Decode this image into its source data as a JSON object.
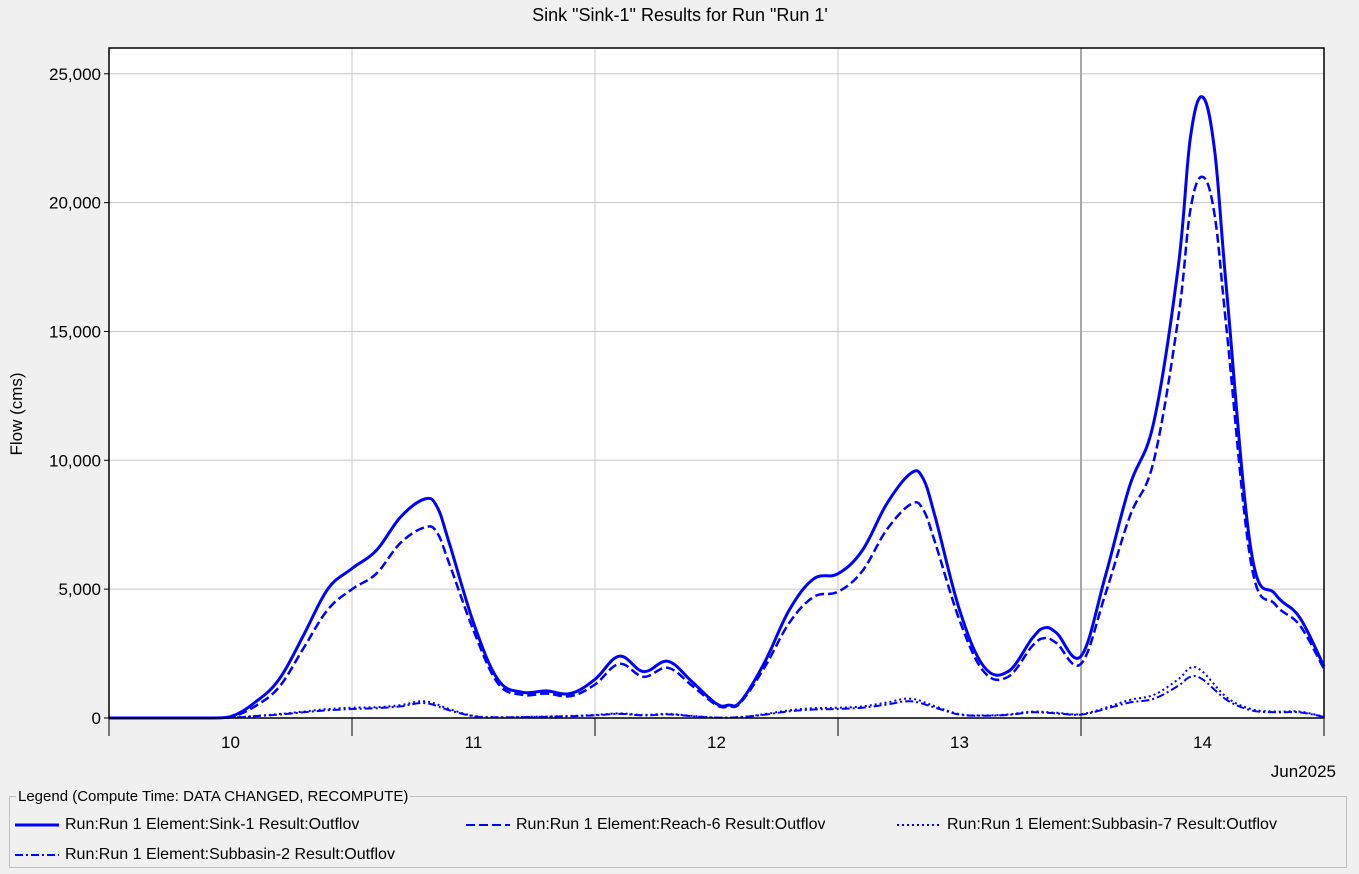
{
  "chart_data": {
    "type": "line",
    "title": "Sink \"Sink-1\" Results for Run \"Run 1'",
    "xlabel": "",
    "ylabel": "Flow (cms)",
    "x_unit_label": "Jun2025",
    "x_range_days": [
      9.5,
      14.5
    ],
    "x_ticks": [
      10,
      11,
      12,
      13,
      14
    ],
    "x_tick_labels": [
      "10",
      "11",
      "12",
      "13",
      "14"
    ],
    "ylim": [
      0,
      26000
    ],
    "y_ticks": [
      0,
      5000,
      10000,
      15000,
      20000,
      25000
    ],
    "y_tick_labels": [
      "0",
      "5,000",
      "10,000",
      "15,000",
      "20,000",
      "25,000"
    ],
    "grid": true,
    "series": [
      {
        "name": "Run:Run 1 Element:Sink-1 Result:Outflow",
        "style": "solid",
        "color": "#0000ff",
        "x": [
          9.5,
          9.9,
          10.0,
          10.1,
          10.2,
          10.3,
          10.4,
          10.5,
          10.6,
          10.7,
          10.8,
          10.85,
          10.9,
          11.0,
          11.1,
          11.2,
          11.3,
          11.4,
          11.5,
          11.6,
          11.7,
          11.8,
          11.9,
          12.0,
          12.05,
          12.1,
          12.2,
          12.3,
          12.4,
          12.5,
          12.6,
          12.7,
          12.8,
          12.85,
          12.9,
          13.0,
          13.1,
          13.2,
          13.3,
          13.35,
          13.4,
          13.5,
          13.6,
          13.7,
          13.8,
          13.9,
          13.95,
          14.0,
          14.05,
          14.1,
          14.2,
          14.3,
          14.4,
          14.5
        ],
        "y": [
          0,
          0,
          50,
          600,
          1500,
          3200,
          5000,
          5800,
          6500,
          7800,
          8500,
          8200,
          6800,
          3700,
          1500,
          1000,
          1050,
          950,
          1500,
          2400,
          1800,
          2200,
          1400,
          550,
          500,
          650,
          2200,
          4200,
          5400,
          5600,
          6500,
          8300,
          9500,
          9300,
          7800,
          4200,
          2000,
          1800,
          3100,
          3500,
          3300,
          2400,
          5500,
          9000,
          11500,
          17500,
          22500,
          24100,
          22000,
          16500,
          6500,
          4800,
          3900,
          2000
        ]
      },
      {
        "name": "Run:Run 1 Element:Reach-6 Result:Outflow",
        "style": "dashed",
        "color": "#0000ff",
        "x": [
          9.5,
          9.9,
          10.0,
          10.1,
          10.2,
          10.3,
          10.4,
          10.5,
          10.6,
          10.7,
          10.8,
          10.85,
          10.9,
          11.0,
          11.1,
          11.2,
          11.3,
          11.4,
          11.5,
          11.6,
          11.7,
          11.8,
          11.9,
          12.0,
          12.05,
          12.1,
          12.2,
          12.3,
          12.4,
          12.5,
          12.6,
          12.7,
          12.8,
          12.85,
          12.9,
          13.0,
          13.1,
          13.2,
          13.3,
          13.35,
          13.4,
          13.5,
          13.6,
          13.7,
          13.8,
          13.9,
          13.95,
          14.0,
          14.05,
          14.1,
          14.2,
          14.3,
          14.4,
          14.5
        ],
        "y": [
          0,
          0,
          30,
          450,
          1200,
          2700,
          4200,
          5000,
          5600,
          6800,
          7400,
          7200,
          6000,
          3400,
          1350,
          900,
          950,
          850,
          1300,
          2100,
          1600,
          1950,
          1250,
          500,
          450,
          600,
          2000,
          3700,
          4700,
          4900,
          5700,
          7300,
          8300,
          8100,
          6800,
          3800,
          1800,
          1600,
          2800,
          3100,
          2900,
          2100,
          4800,
          7800,
          10000,
          15500,
          19700,
          21000,
          19500,
          15000,
          6000,
          4400,
          3600,
          1900
        ]
      },
      {
        "name": "Run:Run 1 Element:Subbasin-7 Result:Outflow",
        "style": "dotted",
        "color": "#0000ff",
        "x": [
          9.5,
          9.9,
          10.0,
          10.1,
          10.2,
          10.3,
          10.4,
          10.5,
          10.6,
          10.7,
          10.8,
          10.9,
          11.0,
          11.1,
          11.2,
          11.3,
          11.4,
          11.5,
          11.6,
          11.7,
          11.8,
          11.9,
          12.0,
          12.1,
          12.2,
          12.3,
          12.4,
          12.5,
          12.6,
          12.7,
          12.8,
          12.9,
          13.0,
          13.1,
          13.2,
          13.3,
          13.4,
          13.5,
          13.6,
          13.7,
          13.8,
          13.9,
          13.95,
          14.0,
          14.1,
          14.2,
          14.3,
          14.4,
          14.5
        ],
        "y": [
          0,
          0,
          10,
          80,
          150,
          250,
          350,
          400,
          420,
          500,
          650,
          350,
          80,
          30,
          40,
          60,
          80,
          120,
          180,
          120,
          160,
          80,
          20,
          40,
          150,
          300,
          380,
          400,
          450,
          600,
          750,
          450,
          150,
          100,
          140,
          250,
          200,
          150,
          400,
          700,
          900,
          1500,
          1950,
          1800,
          800,
          350,
          250,
          250,
          50
        ]
      },
      {
        "name": "Run:Run 1 Element:Subbasin-2 Result:Outflow",
        "style": "dash-dot",
        "color": "#0000ff",
        "x": [
          9.5,
          9.9,
          10.0,
          10.1,
          10.2,
          10.3,
          10.4,
          10.5,
          10.6,
          10.7,
          10.8,
          10.9,
          11.0,
          11.1,
          11.2,
          11.3,
          11.4,
          11.5,
          11.6,
          11.7,
          11.8,
          11.9,
          12.0,
          12.1,
          12.2,
          12.3,
          12.4,
          12.5,
          12.6,
          12.7,
          12.8,
          12.9,
          13.0,
          13.1,
          13.2,
          13.3,
          13.4,
          13.5,
          13.6,
          13.7,
          13.8,
          13.9,
          13.95,
          14.0,
          14.1,
          14.2,
          14.3,
          14.4,
          14.5
        ],
        "y": [
          0,
          0,
          10,
          70,
          130,
          220,
          300,
          350,
          380,
          450,
          580,
          300,
          70,
          25,
          35,
          50,
          70,
          100,
          160,
          100,
          140,
          70,
          15,
          35,
          130,
          260,
          330,
          350,
          400,
          520,
          650,
          400,
          130,
          90,
          120,
          220,
          180,
          130,
          350,
          600,
          750,
          1250,
          1600,
          1500,
          700,
          300,
          220,
          220,
          40
        ]
      }
    ]
  },
  "legend": {
    "title": "Legend (Compute Time: DATA CHANGED, RECOMPUTE)",
    "items": [
      {
        "label": "Run:Run 1 Element:Sink-1 Result:Outflov",
        "style": "solid"
      },
      {
        "label": "Run:Run 1 Element:Reach-6 Result:Outflov",
        "style": "dashed"
      },
      {
        "label": "Run:Run 1 Element:Subbasin-7 Result:Outflov",
        "style": "dotted"
      },
      {
        "label": "Run:Run 1 Element:Subbasin-2 Result:Outflov",
        "style": "dash-dot"
      }
    ]
  }
}
